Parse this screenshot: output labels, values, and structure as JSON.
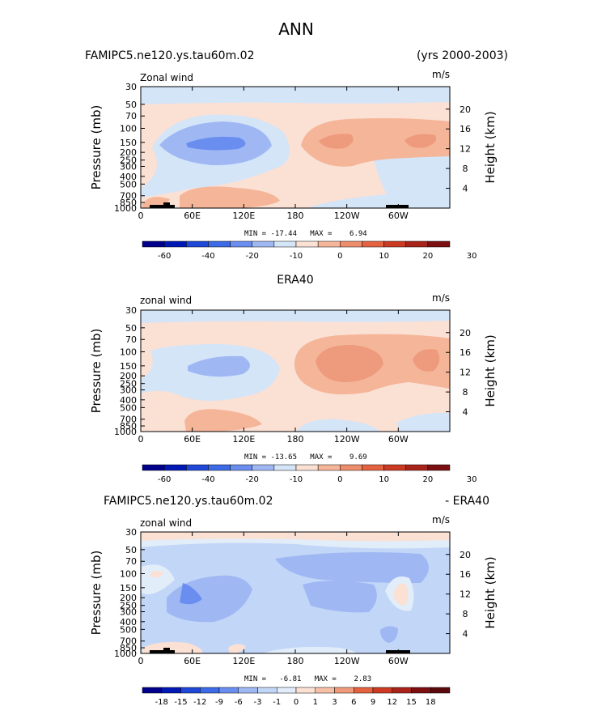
{
  "page_title": "ANN",
  "colors": {
    "neg_strong": "#6a8ef0",
    "neg_mid": "#9fb8f4",
    "neg_light": "#d4e5f8",
    "pos_light": "#fbe0d4",
    "pos_mid": "#f5b599",
    "pos_strong": "#ee9a7c",
    "terrain": "#000000"
  },
  "chart_data": [
    {
      "type": "heatmap",
      "title_left": "FAMIPC5.ne120.ys.tau60m.02",
      "title_right": "(yrs 2000-2003)",
      "variable": "Zonal wind",
      "units": "m/s",
      "ylabel_left": "Pressure (mb)",
      "ylabel_right": "Height (km)",
      "xticks": [
        "0",
        "60E",
        "120E",
        "180",
        "120W",
        "60W"
      ],
      "pressure_ticks": [
        "30",
        "50",
        "70",
        "100",
        "150",
        "200",
        "250",
        "300",
        "400",
        "500",
        "700",
        "850",
        "1000"
      ],
      "height_ticks": [
        "20",
        "16",
        "12",
        "8",
        "4"
      ],
      "min_max": "MIN = -17.44   MAX =    6.94",
      "min": -17.44,
      "max": 6.94,
      "colorbar_labels": [
        "-60",
        "-40",
        "-20",
        "-10",
        "0",
        "10",
        "20",
        "30"
      ],
      "colorbar_colors": [
        "#00008b",
        "#0018b4",
        "#1f47d8",
        "#3d6ae6",
        "#6a8ef0",
        "#9fb8f4",
        "#d4e5f8",
        "#fbe0d4",
        "#f5b599",
        "#ee8d6c",
        "#e4623f",
        "#cc3a22",
        "#a8231a",
        "#7b0f12"
      ]
    },
    {
      "type": "heatmap",
      "title_center": "ERA40",
      "variable": "zonal wind",
      "units": "m/s",
      "ylabel_left": "Pressure (mb)",
      "ylabel_right": "Height (km)",
      "xticks": [
        "0",
        "60E",
        "120E",
        "180",
        "120W",
        "60W"
      ],
      "pressure_ticks": [
        "30",
        "50",
        "70",
        "100",
        "150",
        "200",
        "250",
        "300",
        "400",
        "500",
        "700",
        "850",
        "1000"
      ],
      "height_ticks": [
        "20",
        "16",
        "12",
        "8",
        "4"
      ],
      "min_max": "MIN = -13.65   MAX =    9.69",
      "min": -13.65,
      "max": 9.69,
      "colorbar_labels": [
        "-60",
        "-40",
        "-20",
        "-10",
        "0",
        "10",
        "20",
        "30"
      ],
      "colorbar_colors": [
        "#00008b",
        "#0018b4",
        "#1f47d8",
        "#3d6ae6",
        "#6a8ef0",
        "#9fb8f4",
        "#d4e5f8",
        "#fbe0d4",
        "#f5b599",
        "#ee8d6c",
        "#e4623f",
        "#cc3a22",
        "#a8231a",
        "#7b0f12"
      ]
    },
    {
      "type": "heatmap",
      "title_left": "FAMIPC5.ne120.ys.tau60m.02",
      "title_right": "- ERA40",
      "variable": "zonal wind",
      "units": "m/s",
      "ylabel_left": "Pressure (mb)",
      "ylabel_right": "Height (km)",
      "xticks": [
        "0",
        "60E",
        "120E",
        "180",
        "120W",
        "60W"
      ],
      "pressure_ticks": [
        "30",
        "50",
        "70",
        "100",
        "150",
        "200",
        "250",
        "300",
        "400",
        "500",
        "700",
        "850",
        "1000"
      ],
      "height_ticks": [
        "20",
        "16",
        "12",
        "8",
        "4"
      ],
      "min_max": "MIN =   -6.81   MAX =    2.83",
      "min": -6.81,
      "max": 2.83,
      "colorbar_labels": [
        "-18",
        "-15",
        "-12",
        "-9",
        "-6",
        "-3",
        "-1",
        "0",
        "1",
        "3",
        "6",
        "9",
        "12",
        "15",
        "18"
      ],
      "colorbar_colors": [
        "#00008b",
        "#0018b4",
        "#1f47d8",
        "#3d6ae6",
        "#6a8ef0",
        "#9fb8f4",
        "#c2d6f7",
        "#e2edfa",
        "#fbe0d4",
        "#f5c0a6",
        "#ef9a7a",
        "#e4623f",
        "#cc3a22",
        "#a8231a",
        "#7b0f12",
        "#5a0a0c"
      ]
    }
  ]
}
